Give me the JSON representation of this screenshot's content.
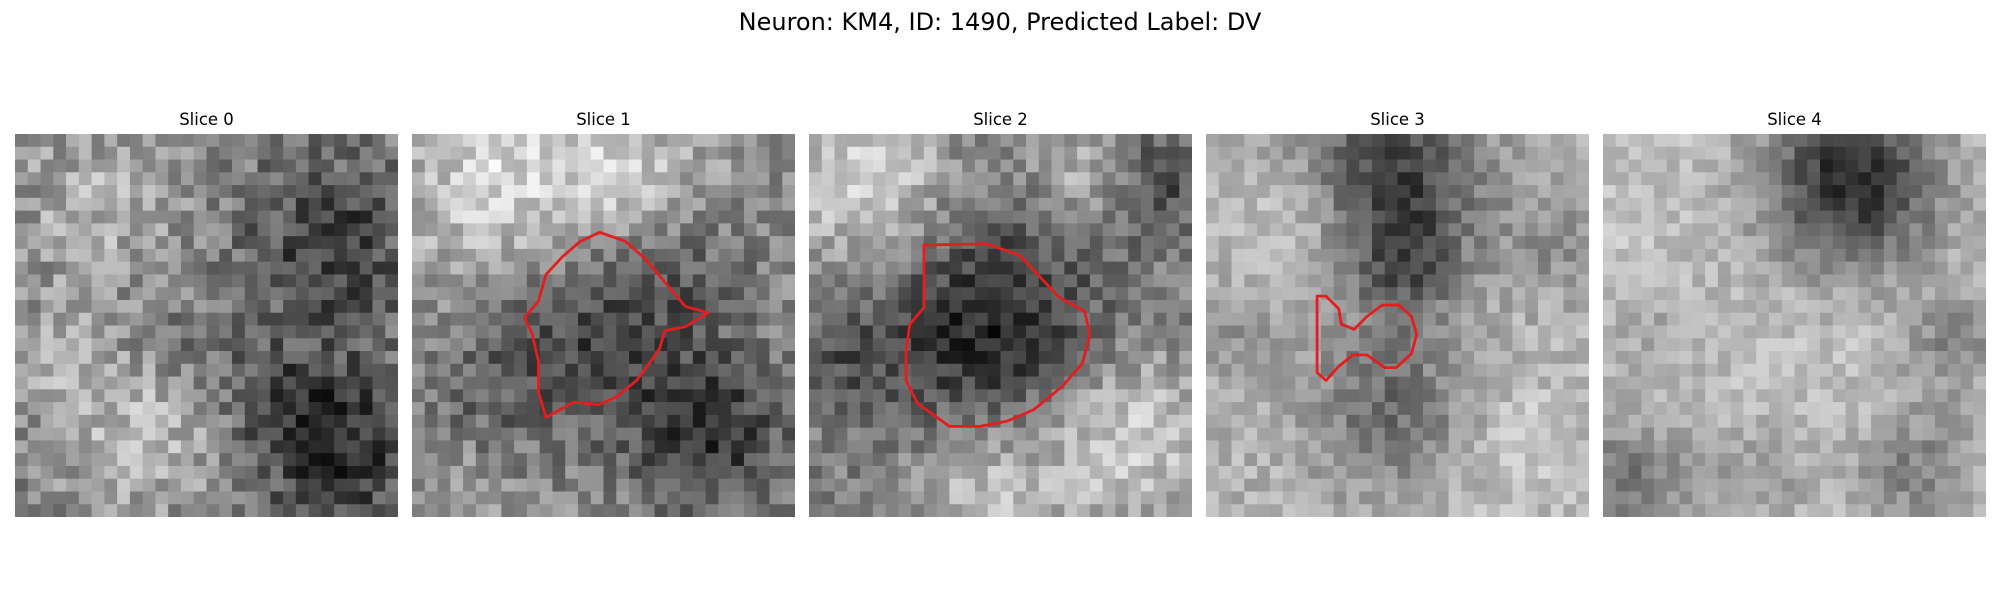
{
  "figure": {
    "title": "Neuron: KM4, ID: 1490, Predicted Label: DV",
    "contour_color": "#e41e1e"
  },
  "panels": [
    {
      "label": "Slice 0"
    },
    {
      "label": "Slice 1"
    },
    {
      "label": "Slice 2"
    },
    {
      "label": "Slice 3"
    },
    {
      "label": "Slice 4"
    }
  ]
}
